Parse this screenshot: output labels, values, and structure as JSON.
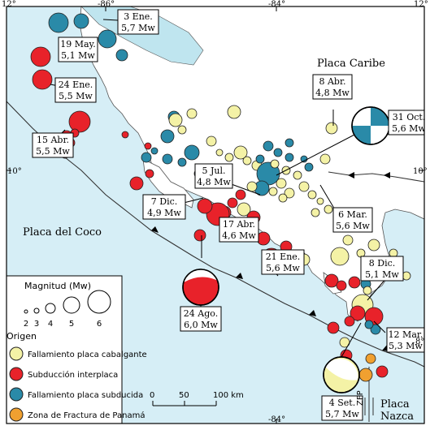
{
  "axes": {
    "top": [
      "12°",
      "-86°",
      "-84°",
      "12°"
    ],
    "left": [
      "10°"
    ],
    "right": [
      "10°",
      "8°"
    ],
    "bottom": [
      "-84°"
    ]
  },
  "plates": {
    "caribe": "Placa Caribe",
    "coco": "Placa del Coco",
    "nazca_1": "Placa",
    "nazca_2": "Nazca",
    "zfp": "ZFP"
  },
  "events": [
    {
      "date": "3 Ene.",
      "mag": "5,7 Mw"
    },
    {
      "date": "19 May.",
      "mag": "5,1 Mw"
    },
    {
      "date": "24 Ene.",
      "mag": "5,5 Mw"
    },
    {
      "date": "15 Abr.",
      "mag": "5,5 Mw"
    },
    {
      "date": "8 Abr.",
      "mag": "4,8 Mw"
    },
    {
      "date": "31 Oct.",
      "mag": "5,6 Mw"
    },
    {
      "date": "5 Jul.",
      "mag": "4,8 Mw"
    },
    {
      "date": "7 Dic.",
      "mag": "4,9 Mw"
    },
    {
      "date": "6 Mar.",
      "mag": "5,6 Mw"
    },
    {
      "date": "17 Abr.",
      "mag": "4,6 Mw"
    },
    {
      "date": "21 Ene.",
      "mag": "5,6 Mw"
    },
    {
      "date": "8 Dic.",
      "mag": "5,1 Mw"
    },
    {
      "date": "24 Ago.",
      "mag": "6,0 Mw"
    },
    {
      "date": "12 Mar.",
      "mag": "5,3 Mw"
    },
    {
      "date": "4 Set.",
      "mag": "5,7 Mw"
    }
  ],
  "legend": {
    "mag_title": "Magnitud (Mw)",
    "mag_values": [
      "2",
      "3",
      "4",
      "5",
      "6"
    ],
    "origin_title": "Origen",
    "origins": [
      {
        "label": "Fallamiento placa cabalgante",
        "color": "#f4f2a6"
      },
      {
        "label": "Subducción interplaca",
        "color": "#e8222a"
      },
      {
        "label": "Fallamiento placa subducida",
        "color": "#2a8aa8"
      },
      {
        "label": "Zona de Fractura de Panamá",
        "color": "#f0a030"
      }
    ]
  },
  "scale": {
    "ticks": [
      "0",
      "50",
      "100 km"
    ]
  },
  "colors": {
    "sea": "#d6eef6",
    "land": "#ffffff",
    "lake": "#bfe5ef",
    "yellow": "#f4f2a6",
    "red": "#e8222a",
    "blue": "#2a8aa8",
    "orange": "#f0a030"
  }
}
